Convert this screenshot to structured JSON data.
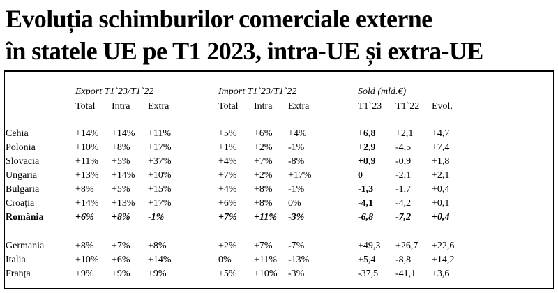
{
  "title": {
    "line1": "Evoluția schimburilor comerciale externe",
    "line2": "în statele UE pe T1 2023, intra-UE și extra-UE"
  },
  "groups": {
    "export": "Export T1`23/T1`22",
    "import": "Import T1`23/T1`22",
    "sold": "Sold (mld.€)"
  },
  "columns": [
    "Total",
    "Intra",
    "Extra",
    "Total",
    "Intra",
    "Extra",
    "T1`23",
    "T1`22",
    "Evol."
  ],
  "rows": [
    {
      "country": "Cehia",
      "values": [
        "+14%",
        "+14%",
        "+11%",
        "+5%",
        "+6%",
        "+4%",
        "+6,8",
        "+2,1",
        "+4,7"
      ]
    },
    {
      "country": "Polonia",
      "values": [
        "+10%",
        "+8%",
        "+17%",
        "+1%",
        "+2%",
        "-1%",
        "+2,9",
        "-4,5",
        "+7,4"
      ]
    },
    {
      "country": "Slovacia",
      "values": [
        "+11%",
        "+5%",
        "+37%",
        "+4%",
        "+7%",
        "-8%",
        "+0,9",
        "-0,9",
        "+1,8"
      ]
    },
    {
      "country": "Ungaria",
      "values": [
        "+13%",
        "+14%",
        "+10%",
        "+7%",
        "+2%",
        "+17%",
        "0",
        "-2,1",
        "+2,1"
      ]
    },
    {
      "country": "Bulgaria",
      "values": [
        "+8%",
        "+5%",
        "+15%",
        "+4%",
        "+8%",
        "-1%",
        "-1,3",
        "-1,7",
        "+0,4"
      ]
    },
    {
      "country": "Croația",
      "values": [
        "+14%",
        "+13%",
        "+17%",
        "+6%",
        "+8%",
        "0%",
        "-4,1",
        "-4,2",
        "+0,1"
      ]
    },
    {
      "country": "România",
      "values": [
        "+6%",
        "+8%",
        "-1%",
        "+7%",
        "+11%",
        "-3%",
        "-6,8",
        "-7,2",
        "+0,4"
      ]
    },
    {
      "country": "Germania",
      "values": [
        "+8%",
        "+7%",
        "+8%",
        "+2%",
        "+7%",
        "-7%",
        "+49,3",
        "+26,7",
        "+22,6"
      ]
    },
    {
      "country": "Italia",
      "values": [
        "+10%",
        "+6%",
        "+14%",
        "0%",
        "+11%",
        "-13%",
        "+5,4",
        "-8,8",
        "+14,2"
      ]
    },
    {
      "country": "Franța",
      "values": [
        "+9%",
        "+9%",
        "+9%",
        "+5%",
        "+10%",
        "-3%",
        "-37,5",
        "-41,1",
        "+3,6"
      ]
    }
  ]
}
